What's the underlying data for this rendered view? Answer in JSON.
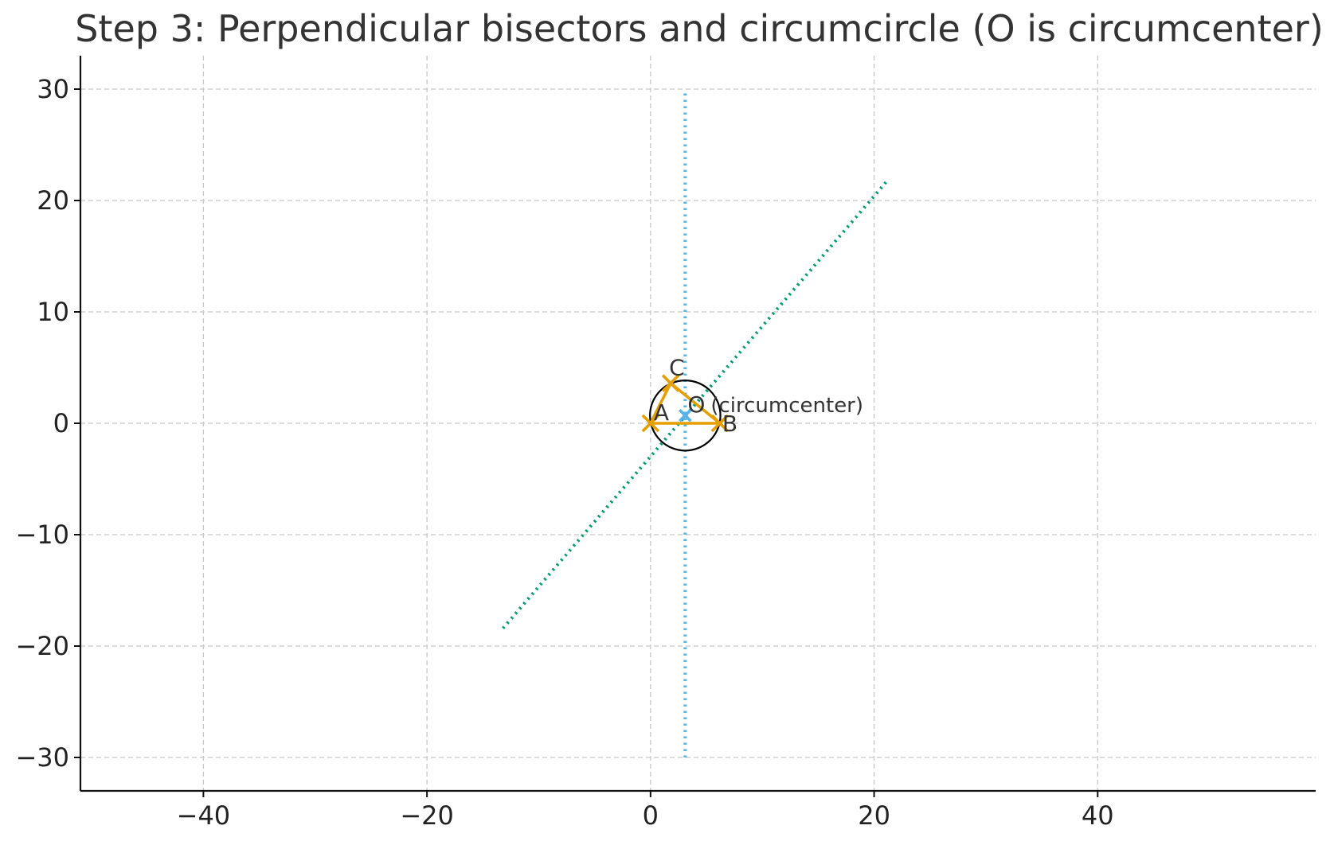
{
  "chart_data": {
    "type": "line",
    "title": "Step 3: Perpendicular bisectors and circumcircle (O is circumcenter)",
    "xlabel": "",
    "ylabel": "",
    "xlim": [
      -51,
      59.5
    ],
    "ylim": [
      -33,
      33
    ],
    "xticks": [
      -40,
      -20,
      0,
      20,
      40
    ],
    "yticks": [
      -30,
      -20,
      -10,
      0,
      10,
      20,
      30
    ],
    "xtick_labels": [
      "−40",
      "−20",
      "0",
      "20",
      "40"
    ],
    "ytick_labels": [
      "−30",
      "−20",
      "−10",
      "0",
      "10",
      "20",
      "30"
    ],
    "grid": true,
    "colors": {
      "triangle": "#E69F00",
      "bisector_ab": "#56B4E9",
      "bisector_bc": "#009E73",
      "circumcircle": "#000000",
      "circumcenter": "#56B4E9"
    },
    "triangle": {
      "points": [
        {
          "name": "A",
          "x": 0,
          "y": 0
        },
        {
          "name": "B",
          "x": 6.2,
          "y": 0
        },
        {
          "name": "C",
          "x": 1.8,
          "y": 3.6
        }
      ]
    },
    "bisectors": [
      {
        "x": [
          3.1,
          3.1
        ],
        "y": [
          -30,
          30
        ],
        "style": "dotted"
      },
      {
        "x": [
          -13.2,
          21.2
        ],
        "y": [
          -18.4,
          21.8
        ],
        "style": "dotted"
      }
    ],
    "circumcircle": {
      "cx": 3.1,
      "cy": 0.7,
      "r": 3.15
    },
    "circumcenter": {
      "name": "O",
      "x": 3.1,
      "y": 0.7,
      "annotation": "(circumcenter)"
    }
  }
}
